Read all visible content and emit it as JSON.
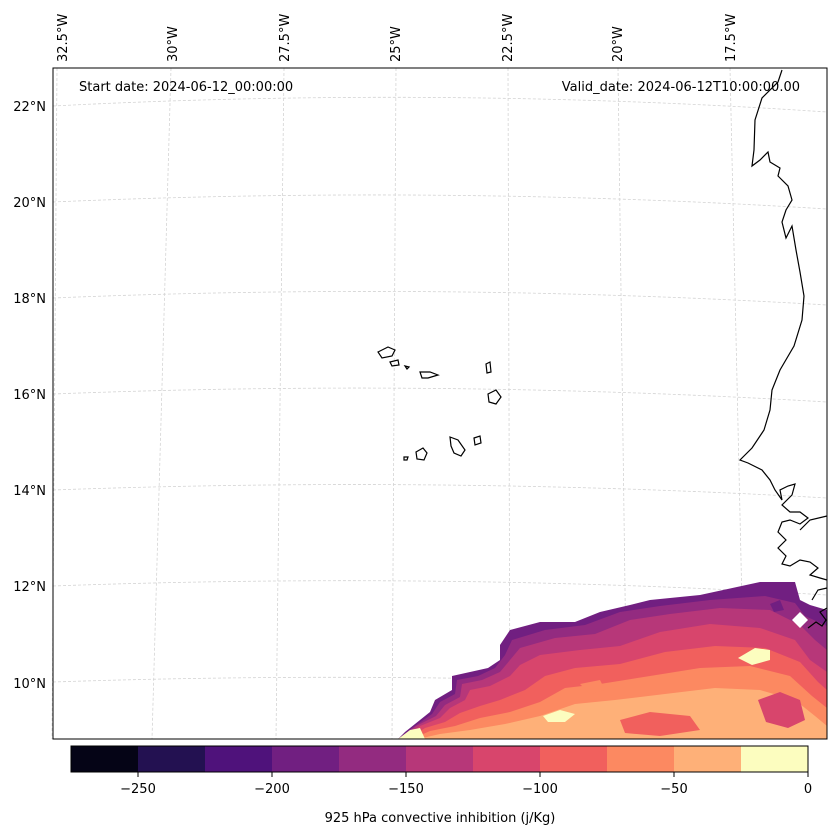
{
  "map": {
    "start_date": "Start date: 2024-06-12_00:00:00",
    "valid_date": "Valid_date: 2024-06-12T10:00:00.00",
    "lon_labels": [
      "32.5°W",
      "30°W",
      "27.5°W",
      "25°W",
      "22.5°W",
      "20°W",
      "17.5°W"
    ],
    "lat_labels": [
      "22°N",
      "20°N",
      "18°N",
      "16°N",
      "14°N",
      "12°N",
      "10°N"
    ]
  },
  "colorbar": {
    "label": "925 hPa convective inhibition (j/Kg)",
    "ticks": [
      "−250",
      "−200",
      "−150",
      "−100",
      "−50",
      "0"
    ],
    "levels": [
      -275,
      -250,
      -225,
      -200,
      -175,
      -150,
      -125,
      -100,
      -75,
      -50,
      -25,
      0
    ],
    "colors": [
      "#050416",
      "#231151",
      "#4f127b",
      "#711f81",
      "#932b80",
      "#b73779",
      "#d8456c",
      "#f1605d",
      "#fc8961",
      "#feb078",
      "#fcfdbf"
    ]
  }
}
